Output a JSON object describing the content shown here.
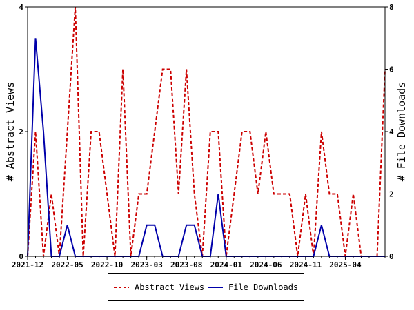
{
  "chart_data": {
    "type": "line",
    "x": [
      "2021-12",
      "2022-01",
      "2022-02",
      "2022-03",
      "2022-04",
      "2022-05",
      "2022-06",
      "2022-07",
      "2022-08",
      "2022-09",
      "2022-10",
      "2022-11",
      "2022-12",
      "2023-01",
      "2023-02",
      "2023-03",
      "2023-04",
      "2023-05",
      "2023-06",
      "2023-07",
      "2023-08",
      "2023-09",
      "2023-10",
      "2023-11",
      "2023-12",
      "2024-01",
      "2024-02",
      "2024-03",
      "2024-04",
      "2024-05",
      "2024-06",
      "2024-07",
      "2024-08",
      "2024-09",
      "2024-10",
      "2024-11",
      "2024-12",
      "2025-01",
      "2025-02",
      "2025-03",
      "2025-04",
      "2025-05",
      "2025-06",
      "2025-07",
      "2025-08",
      "2025-09"
    ],
    "x_tick_labels": [
      "2021-12",
      "2022-05",
      "2022-10",
      "2023-03",
      "2023-08",
      "2024-01",
      "2024-06",
      "2024-11",
      "2025-04"
    ],
    "y_left_label": "# Abstract Views",
    "y_right_label": "# File Downloads",
    "y_left_lim": [
      0,
      4
    ],
    "y_right_lim": [
      0,
      8
    ],
    "y_left_ticks": [
      "0",
      "2",
      "4"
    ],
    "y_right_ticks": [
      "0",
      "2",
      "4",
      "6",
      "8"
    ],
    "legend_position": "bottom",
    "series": [
      {
        "name": "Abstract Views",
        "axis": "left",
        "color": "#cc0000",
        "style": "dashed",
        "values": [
          0,
          2,
          0,
          1,
          0,
          2,
          4,
          0,
          2,
          2,
          1,
          0,
          3,
          0,
          1,
          1,
          2,
          3,
          3,
          1,
          3,
          1,
          0,
          2,
          2,
          0,
          1,
          2,
          2,
          1,
          2,
          1,
          1,
          1,
          0,
          1,
          0,
          2,
          1,
          1,
          0,
          1,
          0,
          0,
          0,
          3
        ]
      },
      {
        "name": "File Downloads",
        "axis": "right",
        "color": "#0000aa",
        "style": "solid",
        "values": [
          0,
          7,
          4,
          0,
          0,
          1,
          0,
          0,
          0,
          0,
          0,
          0,
          0,
          0,
          0,
          1,
          1,
          0,
          0,
          0,
          1,
          1,
          0,
          0,
          2,
          0,
          0,
          0,
          0,
          0,
          0,
          0,
          0,
          0,
          0,
          0,
          0,
          1,
          0,
          0,
          0,
          0,
          0,
          0,
          0,
          0
        ]
      }
    ]
  }
}
